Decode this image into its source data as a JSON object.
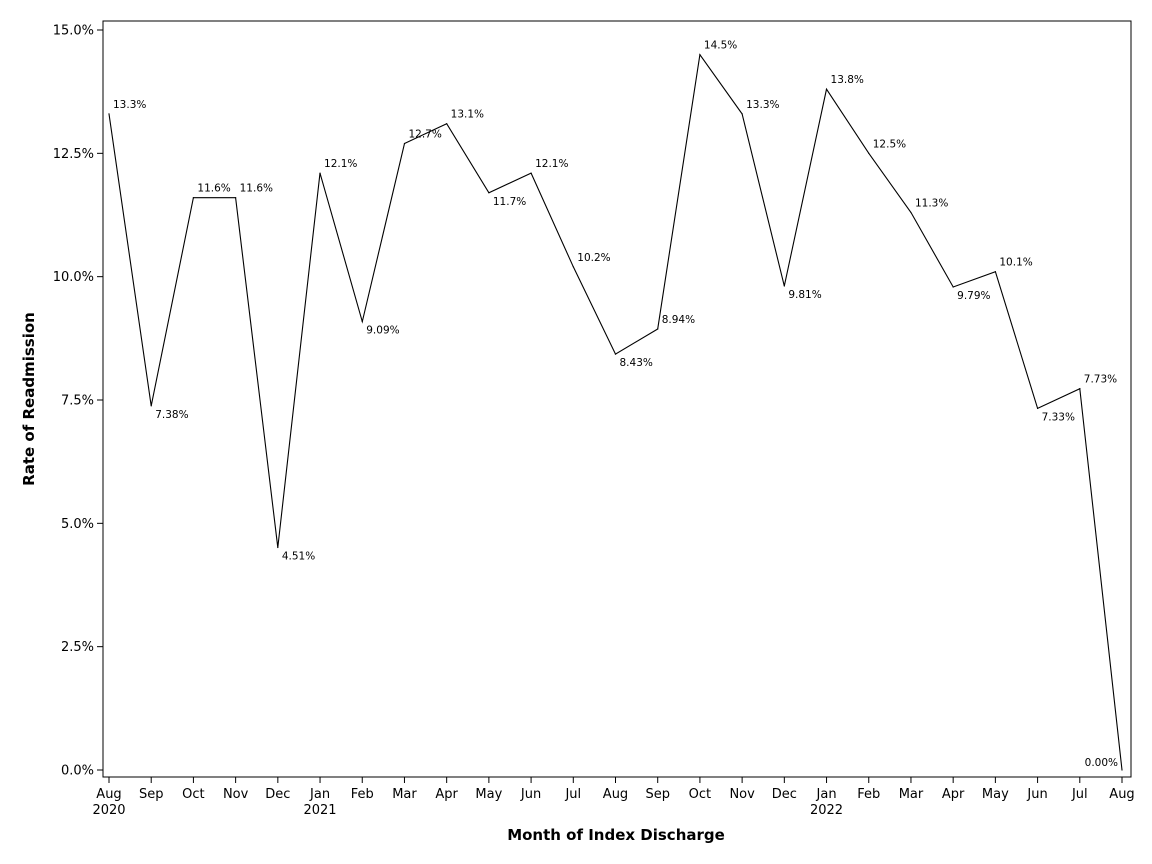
{
  "chart_data": {
    "type": "line",
    "xlabel": "Month of Index Discharge",
    "ylabel": "Rate of Readmission",
    "ylim": [
      0,
      15
    ],
    "y_ticks": [
      "0.0%",
      "2.5%",
      "5.0%",
      "7.5%",
      "10.0%",
      "12.5%",
      "15.0%"
    ],
    "y_tick_values": [
      0,
      2.5,
      5,
      7.5,
      10,
      12.5,
      15
    ],
    "grid": false,
    "line_color": "#000000",
    "categories": [
      "Aug",
      "Sep",
      "Oct",
      "Nov",
      "Dec",
      "Jan",
      "Feb",
      "Mar",
      "Apr",
      "May",
      "Jun",
      "Jul",
      "Aug",
      "Sep",
      "Oct",
      "Nov",
      "Dec",
      "Jan",
      "Feb",
      "Mar",
      "Apr",
      "May",
      "Jun",
      "Jul",
      "Aug"
    ],
    "year_labels": [
      {
        "index": 0,
        "label": "2020"
      },
      {
        "index": 5,
        "label": "2021"
      },
      {
        "index": 17,
        "label": "2022"
      }
    ],
    "x_dates": [
      "2020-08",
      "2020-09",
      "2020-10",
      "2020-11",
      "2020-12",
      "2021-01",
      "2021-02",
      "2021-03",
      "2021-04",
      "2021-05",
      "2021-06",
      "2021-07",
      "2021-08",
      "2021-09",
      "2021-10",
      "2021-11",
      "2021-12",
      "2022-01",
      "2022-02",
      "2022-03",
      "2022-04",
      "2022-05",
      "2022-06",
      "2022-07",
      "2022-08"
    ],
    "values": [
      13.3,
      7.38,
      11.6,
      11.6,
      4.51,
      12.1,
      9.09,
      12.7,
      13.1,
      11.7,
      12.1,
      10.2,
      8.43,
      8.94,
      14.5,
      13.3,
      9.81,
      13.8,
      12.5,
      11.3,
      9.79,
      10.1,
      7.33,
      7.73,
      0.0
    ],
    "data_labels": [
      "13.3%",
      "7.38%",
      "11.6%",
      "11.6%",
      "4.51%",
      "12.1%",
      "9.09%",
      "12.7%",
      "13.1%",
      "11.7%",
      "12.1%",
      "10.2%",
      "8.43%",
      "8.94%",
      "14.5%",
      "13.3%",
      "9.81%",
      "13.8%",
      "12.5%",
      "11.3%",
      "9.79%",
      "10.1%",
      "7.33%",
      "7.73%",
      "0.00%"
    ]
  }
}
